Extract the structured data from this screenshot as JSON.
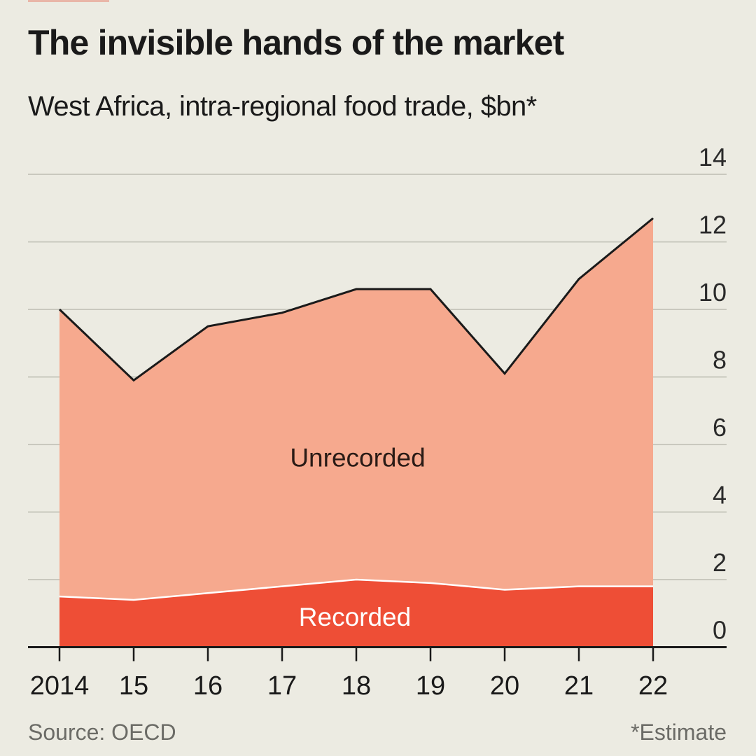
{
  "header": {
    "title": "The invisible hands of the market",
    "subtitle": "West Africa, intra-regional food trade, $bn*"
  },
  "footer": {
    "source": "Source: OECD",
    "note": "*Estimate"
  },
  "colors": {
    "background": "#ecebe2",
    "recorded": "#ee4e36",
    "unrecorded": "#f6a98e",
    "total_line": "#1a1a1a",
    "gridline": "#c9c8be",
    "text": "#1a1a1a",
    "muted_text": "#6b6b66"
  },
  "chart_data": {
    "type": "area",
    "stacked": true,
    "title": "The invisible hands of the market",
    "subtitle": "West Africa, intra-regional food trade, $bn*",
    "xlabel": "",
    "ylabel": "$bn",
    "x": [
      2014,
      2015,
      2016,
      2017,
      2018,
      2019,
      2020,
      2021,
      2022
    ],
    "x_tick_labels": [
      "2014",
      "15",
      "16",
      "17",
      "18",
      "19",
      "20",
      "21",
      "22"
    ],
    "ylim": [
      0,
      14
    ],
    "y_ticks": [
      0,
      2,
      4,
      6,
      8,
      10,
      12,
      14
    ],
    "y_axis_side": "right",
    "grid": true,
    "series": [
      {
        "name": "Recorded",
        "label": "Recorded",
        "values": [
          1.5,
          1.4,
          1.6,
          1.8,
          2.0,
          1.9,
          1.7,
          1.8,
          1.8
        ]
      },
      {
        "name": "Unrecorded",
        "label": "Unrecorded",
        "values": [
          8.5,
          6.5,
          7.9,
          8.1,
          8.6,
          8.7,
          6.4,
          9.1,
          10.9
        ]
      }
    ],
    "total": [
      10.0,
      7.9,
      9.5,
      9.9,
      10.6,
      10.6,
      8.1,
      10.9,
      12.7
    ],
    "annotations": [
      {
        "text": "Unrecorded",
        "x": 2018,
        "y": 5.6
      },
      {
        "text": "Recorded",
        "x": 2018,
        "y": 0.9
      }
    ],
    "source": "Source: OECD",
    "footnote": "*Estimate"
  }
}
